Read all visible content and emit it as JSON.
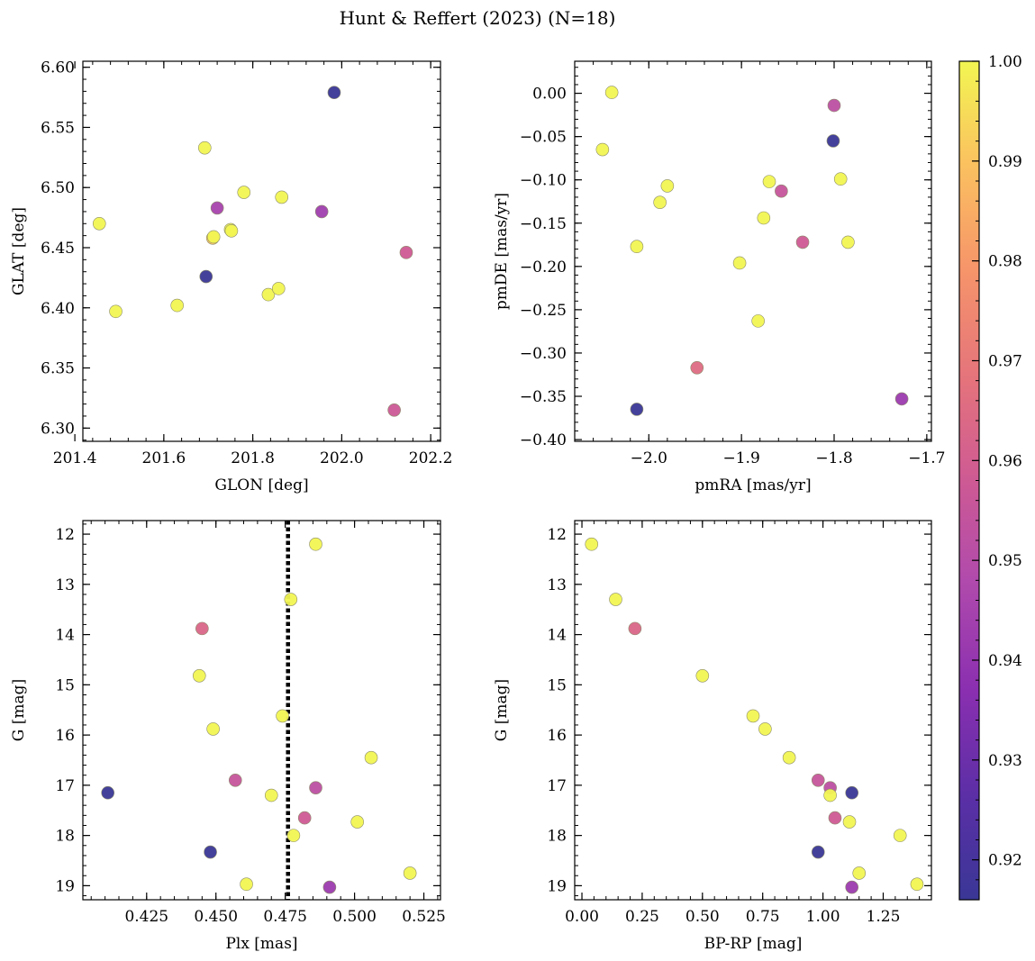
{
  "title": "Hunt & Reffert (2023) (N=18)",
  "colorbar": {
    "min": 0.916,
    "max": 1.0,
    "ticks": [
      0.92,
      0.93,
      0.94,
      0.95,
      0.96,
      0.97,
      0.98,
      0.99,
      1.0
    ],
    "tick_labels": [
      "0.92",
      "0.93",
      "0.94",
      "0.95",
      "0.96",
      "0.97",
      "0.98",
      "0.99",
      "1.00"
    ],
    "colormap": "plasma"
  },
  "chart_data": [
    {
      "type": "scatter",
      "xlabel": "GLON [deg]",
      "ylabel": "GLAT [deg]",
      "xlim": [
        201.418,
        202.222
      ],
      "ylim": [
        6.289,
        6.605
      ],
      "invert_y": false,
      "x_ticks": [
        201.4,
        201.6,
        201.8,
        202.0,
        202.2
      ],
      "x_tick_labels": [
        "201.4",
        "201.6",
        "201.8",
        "202.0",
        "202.2"
      ],
      "y_ticks": [
        6.3,
        6.35,
        6.4,
        6.45,
        6.5,
        6.55,
        6.6
      ],
      "y_tick_labels": [
        "6.30",
        "6.35",
        "6.40",
        "6.45",
        "6.50",
        "6.55",
        "6.60"
      ],
      "points": [
        {
          "x": 201.455,
          "y": 6.47,
          "c": 1.0
        },
        {
          "x": 201.492,
          "y": 6.397,
          "c": 1.0
        },
        {
          "x": 201.63,
          "y": 6.402,
          "c": 1.0
        },
        {
          "x": 201.692,
          "y": 6.533,
          "c": 1.0
        },
        {
          "x": 201.695,
          "y": 6.426,
          "c": 0.916
        },
        {
          "x": 201.71,
          "y": 6.458,
          "c": 0.99
        },
        {
          "x": 201.712,
          "y": 6.459,
          "c": 1.0
        },
        {
          "x": 201.72,
          "y": 6.483,
          "c": 0.945
        },
        {
          "x": 201.75,
          "y": 6.465,
          "c": 1.0
        },
        {
          "x": 201.752,
          "y": 6.464,
          "c": 1.0
        },
        {
          "x": 201.78,
          "y": 6.496,
          "c": 1.0
        },
        {
          "x": 201.835,
          "y": 6.411,
          "c": 1.0
        },
        {
          "x": 201.858,
          "y": 6.416,
          "c": 1.0
        },
        {
          "x": 201.865,
          "y": 6.492,
          "c": 1.0
        },
        {
          "x": 201.955,
          "y": 6.48,
          "c": 0.943
        },
        {
          "x": 201.983,
          "y": 6.579,
          "c": 0.916
        },
        {
          "x": 202.118,
          "y": 6.315,
          "c": 0.957
        },
        {
          "x": 202.145,
          "y": 6.446,
          "c": 0.958
        }
      ]
    },
    {
      "type": "scatter",
      "xlabel": "pmRA [mas/yr]",
      "ylabel": "pmDE [mas/yr]",
      "xlim": [
        -2.08,
        -1.695
      ],
      "ylim": [
        -0.402,
        0.037
      ],
      "invert_y": false,
      "x_ticks": [
        -2.0,
        -1.9,
        -1.8,
        -1.7
      ],
      "x_tick_labels": [
        "−2.0",
        "−1.9",
        "−1.8",
        "−1.7"
      ],
      "y_ticks": [
        -0.4,
        -0.35,
        -0.3,
        -0.25,
        -0.2,
        -0.15,
        -0.1,
        -0.05,
        0.0
      ],
      "y_tick_labels": [
        "−0.40",
        "−0.35",
        "−0.30",
        "−0.25",
        "−0.20",
        "−0.15",
        "−0.10",
        "−0.05",
        "0.00"
      ],
      "points": [
        {
          "x": -2.04,
          "y": 0.001,
          "c": 1.0
        },
        {
          "x": -2.05,
          "y": -0.065,
          "c": 1.0
        },
        {
          "x": -1.98,
          "y": -0.107,
          "c": 1.0
        },
        {
          "x": -1.988,
          "y": -0.126,
          "c": 1.0
        },
        {
          "x": -2.013,
          "y": -0.177,
          "c": 1.0
        },
        {
          "x": -2.013,
          "y": -0.365,
          "c": 0.916
        },
        {
          "x": -1.948,
          "y": -0.317,
          "c": 0.965
        },
        {
          "x": -1.902,
          "y": -0.196,
          "c": 1.0
        },
        {
          "x": -1.882,
          "y": -0.263,
          "c": 1.0
        },
        {
          "x": -1.876,
          "y": -0.144,
          "c": 1.0
        },
        {
          "x": -1.87,
          "y": -0.102,
          "c": 1.0
        },
        {
          "x": -1.857,
          "y": -0.113,
          "c": 0.955
        },
        {
          "x": -1.834,
          "y": -0.172,
          "c": 0.958
        },
        {
          "x": -1.801,
          "y": -0.055,
          "c": 0.916
        },
        {
          "x": -1.8,
          "y": -0.014,
          "c": 0.952
        },
        {
          "x": -1.793,
          "y": -0.099,
          "c": 1.0
        },
        {
          "x": -1.785,
          "y": -0.172,
          "c": 1.0
        },
        {
          "x": -1.727,
          "y": -0.353,
          "c": 0.942
        }
      ]
    },
    {
      "type": "scatter",
      "xlabel": "Plx [mas]",
      "ylabel": "G [mag]",
      "xlim": [
        0.402,
        0.531
      ],
      "ylim": [
        19.28,
        11.73
      ],
      "invert_y": true,
      "vline": {
        "x": 0.476,
        "style": "dotted",
        "color": "#000000"
      },
      "x_ticks": [
        0.425,
        0.45,
        0.475,
        0.5,
        0.525
      ],
      "x_tick_labels": [
        "0.425",
        "0.450",
        "0.475",
        "0.500",
        "0.525"
      ],
      "y_ticks": [
        12,
        13,
        14,
        15,
        16,
        17,
        18,
        19
      ],
      "y_tick_labels": [
        "12",
        "13",
        "14",
        "15",
        "16",
        "17",
        "18",
        "19"
      ],
      "points": [
        {
          "x": 0.486,
          "y": 12.2,
          "c": 1.0
        },
        {
          "x": 0.477,
          "y": 13.3,
          "c": 1.0
        },
        {
          "x": 0.445,
          "y": 13.88,
          "c": 0.963
        },
        {
          "x": 0.444,
          "y": 14.82,
          "c": 1.0
        },
        {
          "x": 0.474,
          "y": 15.62,
          "c": 1.0
        },
        {
          "x": 0.449,
          "y": 15.88,
          "c": 1.0
        },
        {
          "x": 0.506,
          "y": 16.45,
          "c": 1.0
        },
        {
          "x": 0.457,
          "y": 16.9,
          "c": 0.955
        },
        {
          "x": 0.486,
          "y": 17.05,
          "c": 0.952
        },
        {
          "x": 0.411,
          "y": 17.15,
          "c": 0.916
        },
        {
          "x": 0.47,
          "y": 17.2,
          "c": 1.0
        },
        {
          "x": 0.482,
          "y": 17.65,
          "c": 0.958
        },
        {
          "x": 0.501,
          "y": 17.73,
          "c": 1.0
        },
        {
          "x": 0.478,
          "y": 18.0,
          "c": 1.0
        },
        {
          "x": 0.448,
          "y": 18.33,
          "c": 0.916
        },
        {
          "x": 0.52,
          "y": 18.75,
          "c": 1.0
        },
        {
          "x": 0.461,
          "y": 18.97,
          "c": 1.0
        },
        {
          "x": 0.491,
          "y": 19.03,
          "c": 0.942
        }
      ]
    },
    {
      "type": "scatter",
      "xlabel": "BP-RP [mag]",
      "ylabel": "G [mag]",
      "xlim": [
        -0.03,
        1.45
      ],
      "ylim": [
        19.28,
        11.73
      ],
      "invert_y": true,
      "x_ticks": [
        0.0,
        0.25,
        0.5,
        0.75,
        1.0,
        1.25
      ],
      "x_tick_labels": [
        "0.00",
        "0.25",
        "0.50",
        "0.75",
        "1.00",
        "1.25"
      ],
      "y_ticks": [
        12,
        13,
        14,
        15,
        16,
        17,
        18,
        19
      ],
      "y_tick_labels": [
        "12",
        "13",
        "14",
        "15",
        "16",
        "17",
        "18",
        "19"
      ],
      "points": [
        {
          "x": 0.04,
          "y": 12.2,
          "c": 1.0
        },
        {
          "x": 0.14,
          "y": 13.3,
          "c": 1.0
        },
        {
          "x": 0.22,
          "y": 13.88,
          "c": 0.963
        },
        {
          "x": 0.5,
          "y": 14.82,
          "c": 1.0
        },
        {
          "x": 0.71,
          "y": 15.62,
          "c": 1.0
        },
        {
          "x": 0.76,
          "y": 15.88,
          "c": 1.0
        },
        {
          "x": 0.86,
          "y": 16.45,
          "c": 1.0
        },
        {
          "x": 0.98,
          "y": 16.9,
          "c": 0.955
        },
        {
          "x": 1.03,
          "y": 17.05,
          "c": 0.952
        },
        {
          "x": 1.12,
          "y": 17.15,
          "c": 0.916
        },
        {
          "x": 1.03,
          "y": 17.2,
          "c": 1.0
        },
        {
          "x": 1.05,
          "y": 17.65,
          "c": 0.958
        },
        {
          "x": 1.11,
          "y": 17.73,
          "c": 1.0
        },
        {
          "x": 1.32,
          "y": 18.0,
          "c": 1.0
        },
        {
          "x": 0.98,
          "y": 18.33,
          "c": 0.916
        },
        {
          "x": 1.15,
          "y": 18.75,
          "c": 1.0
        },
        {
          "x": 1.39,
          "y": 18.97,
          "c": 1.0
        },
        {
          "x": 1.12,
          "y": 19.03,
          "c": 0.942
        }
      ]
    }
  ]
}
